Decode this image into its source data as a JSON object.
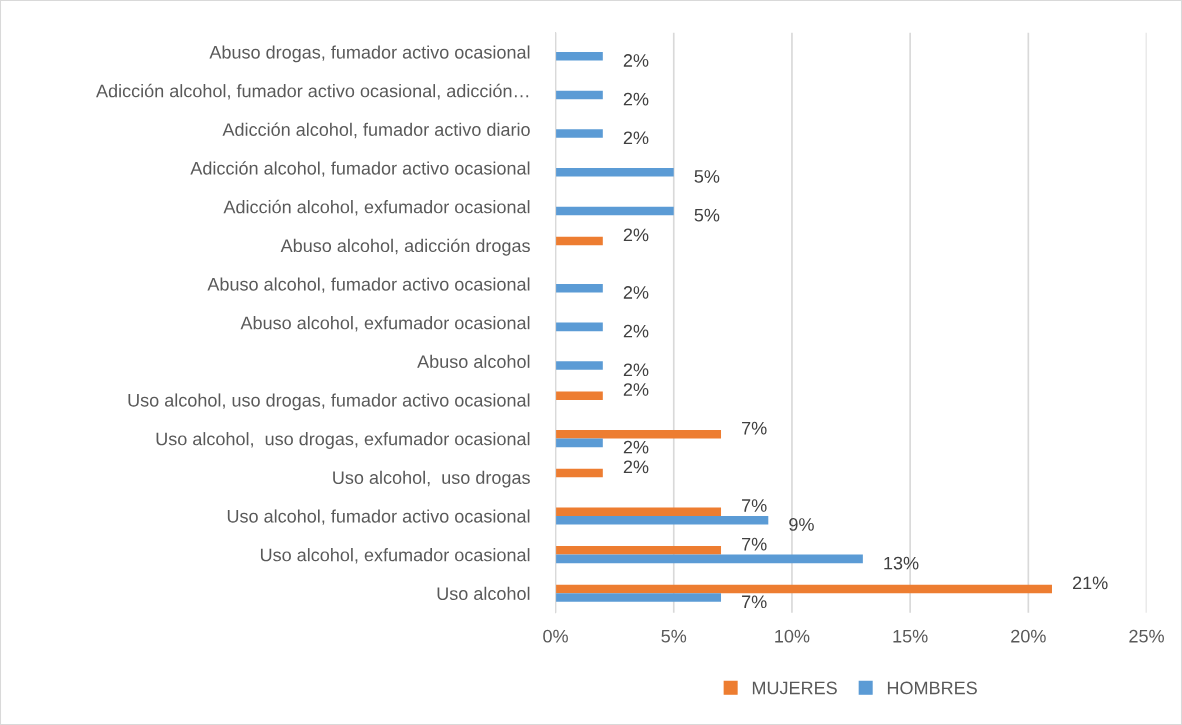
{
  "chart_data": {
    "type": "bar",
    "orientation": "horizontal",
    "categories": [
      "Abuso drogas, fumador activo ocasional",
      "Adicción alcohol, fumador activo ocasional, adicción…",
      "Adicción alcohol, fumador activo diario",
      "Adicción alcohol, fumador activo ocasional",
      "Adicción alcohol, exfumador ocasional",
      "Abuso alcohol, adicción drogas",
      "Abuso alcohol, fumador activo ocasional",
      "Abuso alcohol, exfumador ocasional",
      "Abuso alcohol",
      "Uso alcohol, uso drogas, fumador activo ocasional",
      "Uso alcohol,  uso drogas, exfumador ocasional",
      "Uso alcohol,  uso drogas",
      "Uso alcohol, fumador activo ocasional",
      "Uso alcohol, exfumador ocasional",
      "Uso alcohol"
    ],
    "series": [
      {
        "name": "MUJERES",
        "color": "#ed7d31",
        "values": [
          null,
          null,
          null,
          null,
          null,
          2,
          null,
          null,
          null,
          2,
          7,
          2,
          7,
          7,
          21
        ],
        "value_labels": [
          null,
          null,
          null,
          null,
          null,
          "2%",
          null,
          null,
          null,
          "2%",
          "7%",
          "2%",
          "7%",
          "7%",
          "21%"
        ]
      },
      {
        "name": "HOMBRES",
        "color": "#5b9bd5",
        "values": [
          2,
          2,
          2,
          5,
          5,
          null,
          2,
          2,
          2,
          null,
          2,
          null,
          9,
          13,
          7
        ],
        "value_labels": [
          "2%",
          "2%",
          "2%",
          "5%",
          "5%",
          null,
          "2%",
          "2%",
          "2%",
          null,
          "2%",
          null,
          "9%",
          "13%",
          "7%"
        ]
      }
    ],
    "xlim": [
      0,
      25
    ],
    "xticks": [
      {
        "value": 0,
        "label": "0%"
      },
      {
        "value": 5,
        "label": "5%"
      },
      {
        "value": 10,
        "label": "10%"
      },
      {
        "value": 15,
        "label": "15%"
      },
      {
        "value": 20,
        "label": "20%"
      },
      {
        "value": 25,
        "label": "25%"
      }
    ],
    "grid": "x",
    "legend": "bottom"
  }
}
